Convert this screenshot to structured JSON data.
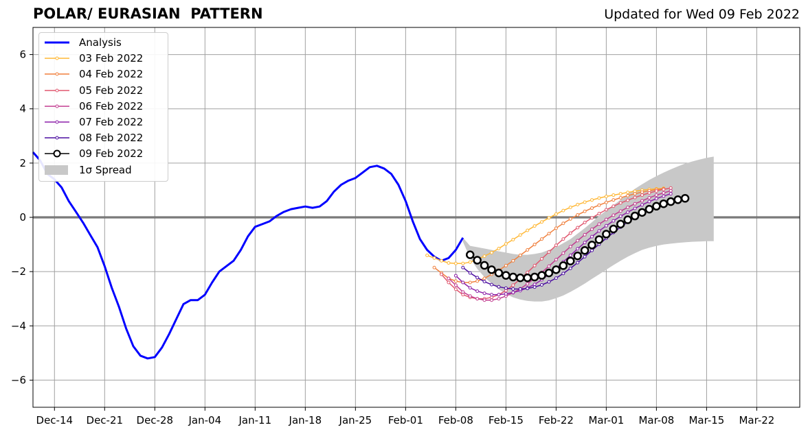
{
  "header": {
    "title": "POLAR/ EURASIAN  PATTERN",
    "updated": "Updated for Wed 09 Feb 2022"
  },
  "chart_data": {
    "type": "line",
    "title": "POLAR/ EURASIAN  PATTERN",
    "subtitle": "Updated for Wed 09 Feb 2022",
    "xlabel": "",
    "ylabel": "",
    "x_axis": {
      "type": "date",
      "xlim": [
        "2021-12-11",
        "2022-03-28"
      ],
      "tick_labels": [
        "Dec-14",
        "Dec-21",
        "Dec-28",
        "Jan-04",
        "Jan-11",
        "Jan-18",
        "Jan-25",
        "Feb-01",
        "Feb-08",
        "Feb-15",
        "Feb-22",
        "Mar-01",
        "Mar-08",
        "Mar-15",
        "Mar-22"
      ]
    },
    "y_axis": {
      "ylim": [
        -7,
        7
      ],
      "ticks": [
        -6,
        -4,
        -2,
        0,
        2,
        4,
        6
      ],
      "tick_labels": [
        "−6",
        "−4",
        "−2",
        "0",
        "2",
        "4",
        "6"
      ]
    },
    "grid": true,
    "legend_placement": "top-left",
    "zero_line": 0,
    "series": [
      {
        "name": "Analysis",
        "color": "#0000ff",
        "style": "thick-line",
        "points": [
          [
            "2021-12-11",
            2.4
          ],
          [
            "2021-12-12",
            2.1
          ],
          [
            "2021-12-13",
            1.6
          ],
          [
            "2021-12-14",
            1.4
          ],
          [
            "2021-12-15",
            1.1
          ],
          [
            "2021-12-16",
            0.6
          ],
          [
            "2021-12-17",
            0.2
          ],
          [
            "2021-12-18",
            -0.2
          ],
          [
            "2021-12-19",
            -0.65
          ],
          [
            "2021-12-20",
            -1.1
          ],
          [
            "2021-12-21",
            -1.8
          ],
          [
            "2021-12-22",
            -2.6
          ],
          [
            "2021-12-23",
            -3.3
          ],
          [
            "2021-12-24",
            -4.1
          ],
          [
            "2021-12-25",
            -4.75
          ],
          [
            "2021-12-26",
            -5.1
          ],
          [
            "2021-12-27",
            -5.2
          ],
          [
            "2021-12-28",
            -5.15
          ],
          [
            "2021-12-29",
            -4.8
          ],
          [
            "2021-12-30",
            -4.3
          ],
          [
            "2021-12-31",
            -3.75
          ],
          [
            "2022-01-01",
            -3.2
          ],
          [
            "2022-01-02",
            -3.05
          ],
          [
            "2022-01-03",
            -3.05
          ],
          [
            "2022-01-04",
            -2.85
          ],
          [
            "2022-01-05",
            -2.4
          ],
          [
            "2022-01-06",
            -2.0
          ],
          [
            "2022-01-07",
            -1.8
          ],
          [
            "2022-01-08",
            -1.6
          ],
          [
            "2022-01-09",
            -1.2
          ],
          [
            "2022-01-10",
            -0.7
          ],
          [
            "2022-01-11",
            -0.35
          ],
          [
            "2022-01-12",
            -0.25
          ],
          [
            "2022-01-13",
            -0.15
          ],
          [
            "2022-01-14",
            0.05
          ],
          [
            "2022-01-15",
            0.2
          ],
          [
            "2022-01-16",
            0.3
          ],
          [
            "2022-01-17",
            0.35
          ],
          [
            "2022-01-18",
            0.4
          ],
          [
            "2022-01-19",
            0.35
          ],
          [
            "2022-01-20",
            0.4
          ],
          [
            "2022-01-21",
            0.6
          ],
          [
            "2022-01-22",
            0.95
          ],
          [
            "2022-01-23",
            1.2
          ],
          [
            "2022-01-24",
            1.35
          ],
          [
            "2022-01-25",
            1.45
          ],
          [
            "2022-01-26",
            1.65
          ],
          [
            "2022-01-27",
            1.85
          ],
          [
            "2022-01-28",
            1.9
          ],
          [
            "2022-01-29",
            1.8
          ],
          [
            "2022-01-30",
            1.6
          ],
          [
            "2022-01-31",
            1.2
          ],
          [
            "2022-02-01",
            0.6
          ],
          [
            "2022-02-02",
            -0.15
          ],
          [
            "2022-02-03",
            -0.8
          ],
          [
            "2022-02-04",
            -1.2
          ],
          [
            "2022-02-05",
            -1.45
          ],
          [
            "2022-02-06",
            -1.6
          ],
          [
            "2022-02-07",
            -1.5
          ],
          [
            "2022-02-08",
            -1.2
          ],
          [
            "2022-02-09",
            -0.75
          ]
        ]
      },
      {
        "name": "03 Feb 2022",
        "color": "#ffb733",
        "style": "thin-line-dots",
        "start": "2022-02-04",
        "values": [
          -1.4,
          -1.5,
          -1.6,
          -1.68,
          -1.7,
          -1.7,
          -1.65,
          -1.55,
          -1.43,
          -1.3,
          -1.15,
          -0.98,
          -0.82,
          -0.65,
          -0.48,
          -0.32,
          -0.17,
          -0.02,
          0.12,
          0.25,
          0.37,
          0.47,
          0.56,
          0.64,
          0.71,
          0.77,
          0.82,
          0.87,
          0.92,
          0.96,
          1.0,
          1.03,
          1.05,
          1.07
        ]
      },
      {
        "name": "04 Feb 2022",
        "color": "#f07f3c",
        "style": "thin-line-dots",
        "start": "2022-02-05",
        "values": [
          -1.85,
          -2.05,
          -2.25,
          -2.35,
          -2.4,
          -2.4,
          -2.35,
          -2.25,
          -2.1,
          -1.95,
          -1.78,
          -1.6,
          -1.4,
          -1.2,
          -1.0,
          -0.8,
          -0.6,
          -0.4,
          -0.22,
          -0.06,
          0.09,
          0.22,
          0.34,
          0.45,
          0.55,
          0.64,
          0.72,
          0.8,
          0.87,
          0.93,
          0.98,
          1.02,
          1.05
        ]
      },
      {
        "name": "05 Feb 2022",
        "color": "#e0566e",
        "style": "thin-line-dots",
        "start": "2022-02-06",
        "values": [
          -2.1,
          -2.4,
          -2.65,
          -2.85,
          -2.95,
          -3.0,
          -3.0,
          -2.95,
          -2.85,
          -2.7,
          -2.5,
          -2.27,
          -2.03,
          -1.78,
          -1.53,
          -1.28,
          -1.03,
          -0.8,
          -0.58,
          -0.38,
          -0.19,
          -0.02,
          0.14,
          0.28,
          0.41,
          0.53,
          0.63,
          0.73,
          0.82,
          0.9,
          0.97,
          1.03,
          1.08
        ]
      },
      {
        "name": "06 Feb 2022",
        "color": "#c23b8f",
        "style": "thin-line-dots",
        "start": "2022-02-07",
        "values": [
          -2.25,
          -2.5,
          -2.75,
          -2.9,
          -3.0,
          -3.05,
          -3.05,
          -3.0,
          -2.9,
          -2.78,
          -2.63,
          -2.45,
          -2.25,
          -2.03,
          -1.8,
          -1.56,
          -1.32,
          -1.08,
          -0.86,
          -0.64,
          -0.44,
          -0.25,
          -0.08,
          0.08,
          0.23,
          0.37,
          0.5,
          0.61,
          0.72,
          0.82,
          0.9,
          0.98
        ]
      },
      {
        "name": "07 Feb 2022",
        "color": "#8c1fa8",
        "style": "thin-line-dots",
        "start": "2022-02-08",
        "values": [
          -2.15,
          -2.4,
          -2.6,
          -2.72,
          -2.8,
          -2.85,
          -2.85,
          -2.82,
          -2.77,
          -2.7,
          -2.6,
          -2.47,
          -2.3,
          -2.1,
          -1.88,
          -1.64,
          -1.4,
          -1.16,
          -0.93,
          -0.71,
          -0.5,
          -0.31,
          -0.13,
          0.04,
          0.19,
          0.33,
          0.46,
          0.58,
          0.69,
          0.78,
          0.87
        ]
      },
      {
        "name": "08 Feb 2022",
        "color": "#4a0ca0",
        "style": "thin-line-dots",
        "start": "2022-02-09",
        "values": [
          -1.85,
          -2.05,
          -2.22,
          -2.37,
          -2.48,
          -2.56,
          -2.61,
          -2.64,
          -2.64,
          -2.62,
          -2.57,
          -2.49,
          -2.38,
          -2.24,
          -2.07,
          -1.88,
          -1.67,
          -1.45,
          -1.22,
          -0.99,
          -0.77,
          -0.56,
          -0.36,
          -0.17,
          0.0,
          0.16,
          0.3,
          0.43,
          0.55,
          0.65
        ]
      },
      {
        "name": "09 Feb 2022",
        "color": "#000000",
        "style": "line-open-circles",
        "start": "2022-02-10",
        "values": [
          -1.38,
          -1.58,
          -1.77,
          -1.93,
          -2.05,
          -2.14,
          -2.2,
          -2.23,
          -2.23,
          -2.2,
          -2.14,
          -2.05,
          -1.93,
          -1.78,
          -1.61,
          -1.42,
          -1.22,
          -1.02,
          -0.82,
          -0.62,
          -0.43,
          -0.25,
          -0.09,
          0.05,
          0.18,
          0.3,
          0.41,
          0.5,
          0.58,
          0.65,
          0.7
        ]
      }
    ],
    "spread": {
      "name": "1σ Spread",
      "color": "#c8c8c8",
      "start": "2022-02-09",
      "upper": [
        -0.75,
        -1.05,
        -1.1,
        -1.15,
        -1.2,
        -1.25,
        -1.3,
        -1.35,
        -1.38,
        -1.38,
        -1.35,
        -1.3,
        -1.2,
        -1.1,
        -0.95,
        -0.8,
        -0.6,
        -0.4,
        -0.18,
        0.05,
        0.25,
        0.45,
        0.65,
        0.85,
        1.05,
        1.22,
        1.38,
        1.52,
        1.65,
        1.77,
        1.88,
        1.98,
        2.06,
        2.13,
        2.19,
        2.24
      ],
      "lower": [
        -0.9,
        -1.5,
        -1.9,
        -2.2,
        -2.45,
        -2.65,
        -2.82,
        -2.95,
        -3.03,
        -3.08,
        -3.1,
        -3.1,
        -3.06,
        -2.98,
        -2.88,
        -2.75,
        -2.6,
        -2.44,
        -2.27,
        -2.1,
        -1.93,
        -1.76,
        -1.6,
        -1.45,
        -1.32,
        -1.2,
        -1.12,
        -1.05,
        -1.0,
        -0.97,
        -0.94,
        -0.92,
        -0.9,
        -0.89,
        -0.88,
        -0.88
      ]
    }
  }
}
